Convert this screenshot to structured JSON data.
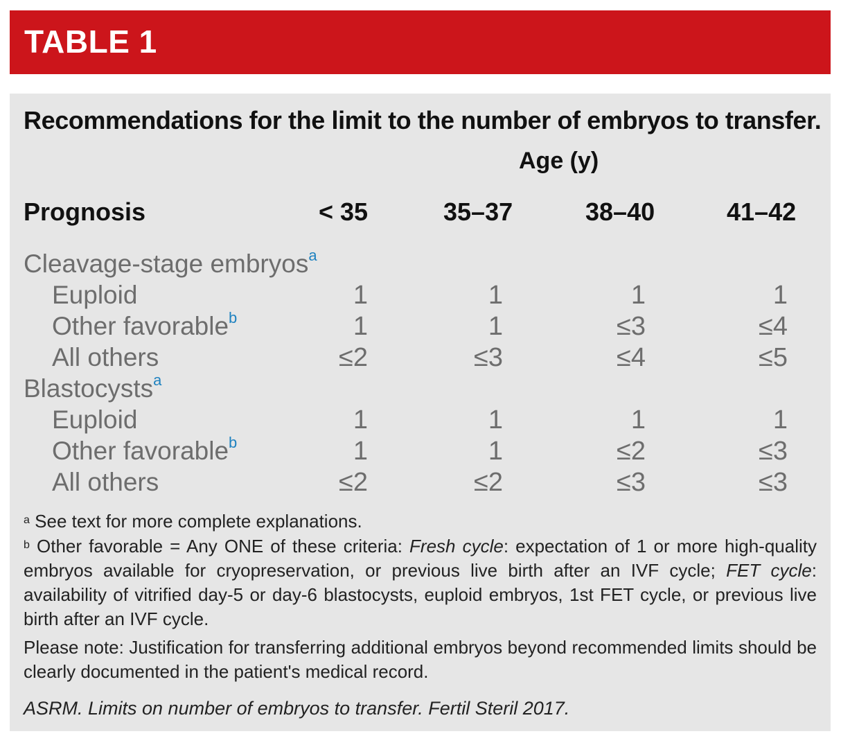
{
  "banner": {
    "title": "TABLE 1"
  },
  "table": {
    "caption": "Recommendations for the limit to the number of embryos to transfer.",
    "age_label": "Age (y)",
    "row_header": "Prognosis",
    "columns": [
      "< 35",
      "35–37",
      "38–40",
      "41–42"
    ],
    "groups": [
      {
        "label": "Cleavage-stage embryos",
        "footnote": "a",
        "rows": [
          {
            "label": "Euploid",
            "footnote": "",
            "values": [
              "1",
              "1",
              "1",
              "1"
            ]
          },
          {
            "label": "Other favorable",
            "footnote": "b",
            "values": [
              "1",
              "1",
              "≤3",
              "≤4"
            ]
          },
          {
            "label": "All others",
            "footnote": "",
            "values": [
              "≤2",
              "≤3",
              "≤4",
              "≤5"
            ]
          }
        ]
      },
      {
        "label": "Blastocysts",
        "footnote": "a",
        "rows": [
          {
            "label": "Euploid",
            "footnote": "",
            "values": [
              "1",
              "1",
              "1",
              "1"
            ]
          },
          {
            "label": "Other favorable",
            "footnote": "b",
            "values": [
              "1",
              "1",
              "≤2",
              "≤3"
            ]
          },
          {
            "label": "All others",
            "footnote": "",
            "values": [
              "≤2",
              "≤2",
              "≤3",
              "≤3"
            ]
          }
        ]
      }
    ]
  },
  "footnotes": {
    "a": {
      "mark": "a",
      "text": "See text for more complete explanations."
    },
    "b": {
      "mark": "b",
      "text_1": "Other favorable = Any ONE of these criteria: ",
      "fresh_label": "Fresh cycle",
      "text_2": ": expectation of 1 or more high-quality embryos available for cryopreservation, or previous live birth after an IVF cycle; ",
      "fet_label": "FET cycle",
      "text_3": ": availability of vitrified day-5 or day-6 blastocysts, euploid embryos, 1st FET cycle, or previous live birth after an IVF cycle."
    },
    "note": "Please note: Justification for transferring additional embryos beyond recommended limits should be clearly documented in the patient's medical record."
  },
  "citation": "ASRM. Limits on number of embryos to transfer. Fertil Steril 2017."
}
